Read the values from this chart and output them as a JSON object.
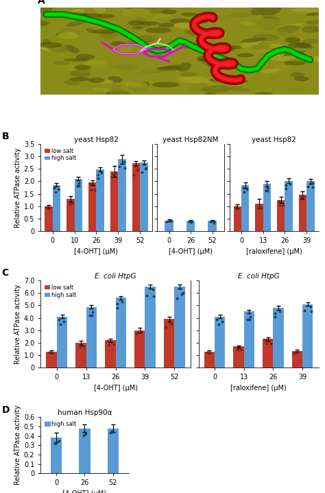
{
  "panel_B": {
    "sub1_title": "yeast Hsp82",
    "sub2_title": "yeast Hsp82NM",
    "sub3_title": "yeast Hsp82",
    "ylim": [
      0,
      3.5
    ],
    "yticks": [
      0,
      0.5,
      1.0,
      1.5,
      2.0,
      2.5,
      3.0,
      3.5
    ],
    "ylabel": "Relative ATPase activity",
    "sub1": {
      "xlabel": "[4-OHT] (μM)",
      "x_labels": [
        "0",
        "10",
        "26",
        "39",
        "52"
      ],
      "low_salt": [
        1.0,
        1.3,
        1.95,
        2.4,
        2.72
      ],
      "high_salt": [
        1.85,
        2.1,
        2.48,
        2.88,
        2.75
      ],
      "low_err": [
        0.05,
        0.12,
        0.1,
        0.22,
        0.1
      ],
      "high_err": [
        0.07,
        0.07,
        0.07,
        0.18,
        0.08
      ]
    },
    "sub2": {
      "xlabel": "[4-OHT] (μM)",
      "x_labels": [
        "0",
        "26",
        "52"
      ],
      "high_salt": [
        0.43,
        0.42,
        0.42
      ],
      "high_err": [
        0.03,
        0.03,
        0.03
      ]
    },
    "sub3": {
      "xlabel": "[raloxifene] (μM)",
      "x_labels": [
        "0",
        "13",
        "26",
        "39"
      ],
      "low_salt": [
        1.0,
        1.1,
        1.25,
        1.45
      ],
      "high_salt": [
        1.85,
        1.9,
        2.02,
        2.0
      ],
      "low_err": [
        0.08,
        0.2,
        0.12,
        0.15
      ],
      "high_err": [
        0.1,
        0.1,
        0.1,
        0.1
      ]
    }
  },
  "panel_C": {
    "sub1_title": "E. coli HtpG",
    "sub2_title": "E. coli HtpG",
    "ylim": [
      0,
      7.0
    ],
    "yticks": [
      0,
      1.0,
      2.0,
      3.0,
      4.0,
      5.0,
      6.0,
      7.0
    ],
    "ylabel": "Relative ATPase activity",
    "sub1": {
      "xlabel": "[4-OHT] (μM)",
      "x_labels": [
        "0",
        "13",
        "26",
        "39",
        "52"
      ],
      "low_salt": [
        1.28,
        2.0,
        2.2,
        3.0,
        3.9
      ],
      "high_salt": [
        4.1,
        4.88,
        5.6,
        6.5,
        6.5
      ],
      "low_err": [
        0.1,
        0.15,
        0.15,
        0.2,
        0.2
      ],
      "high_err": [
        0.15,
        0.15,
        0.15,
        0.15,
        0.15
      ]
    },
    "sub2": {
      "xlabel": "[raloxifene] (μM)",
      "x_labels": [
        "0",
        "13",
        "26",
        "39"
      ],
      "low_salt": [
        1.28,
        1.7,
        2.3,
        1.32
      ],
      "high_salt": [
        4.1,
        4.5,
        4.8,
        5.1
      ],
      "low_err": [
        0.1,
        0.1,
        0.15,
        0.1
      ],
      "high_err": [
        0.15,
        0.15,
        0.15,
        0.15
      ]
    }
  },
  "panel_D": {
    "sub1_title": "human Hsp90α",
    "ylim": [
      0,
      0.6
    ],
    "yticks": [
      0,
      0.1,
      0.2,
      0.3,
      0.4,
      0.5,
      0.6
    ],
    "ylabel": "Relative ATPase activity",
    "sub1": {
      "xlabel": "[4-OHT] (μM)",
      "x_labels": [
        "0",
        "26",
        "52"
      ],
      "high_salt": [
        0.38,
        0.48,
        0.48
      ],
      "high_err": [
        0.05,
        0.04,
        0.04
      ]
    }
  },
  "colors": {
    "low_salt": "#c0392b",
    "high_salt": "#5b9bd5",
    "scatter_low": "#7b241c",
    "scatter_high": "#154360"
  },
  "legend": {
    "low_salt_label": "low salt",
    "high_salt_label": "high salt"
  },
  "bar_width": 0.36,
  "label_fontsize": 7,
  "title_fontsize": 7.5
}
